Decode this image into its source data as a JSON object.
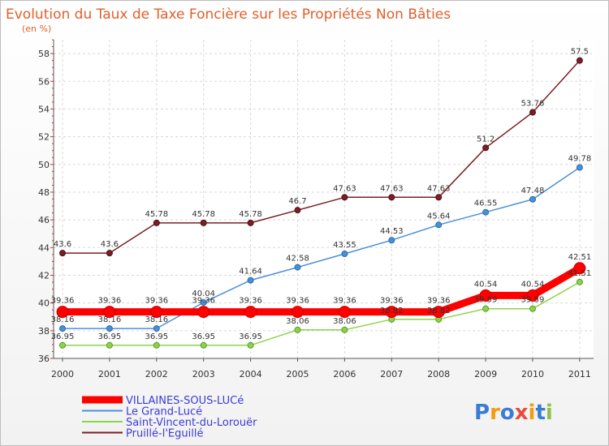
{
  "chart_data": {
    "type": "line",
    "title": "Evolution du Taux de Taxe Foncière sur les Propriétés Non Bâties",
    "subtitle": "(en %)",
    "x": [
      "2000",
      "2001",
      "2002",
      "2003",
      "2004",
      "2005",
      "2006",
      "2007",
      "2008",
      "2009",
      "2010",
      "2011"
    ],
    "ylim": [
      36,
      59
    ],
    "yticks": [
      36,
      38,
      40,
      42,
      44,
      46,
      48,
      50,
      52,
      54,
      56,
      58
    ],
    "grid": true,
    "legend_position": "bottom-left",
    "series": [
      {
        "name": "VILLAINES-SOUS-LUCé",
        "color": "#ff0000",
        "values": [
          39.36,
          39.36,
          39.36,
          39.36,
          39.36,
          39.36,
          39.36,
          39.36,
          39.36,
          40.54,
          40.54,
          42.51
        ],
        "labels": [
          "39.36",
          "39.36",
          "39.36",
          "39.36",
          "39.36",
          "39.36",
          "39.36",
          "39.36",
          "39.36",
          "40.54",
          "40.54",
          "42.51"
        ]
      },
      {
        "name": "Le Grand-Lucé",
        "color": "#4a90d9",
        "values": [
          38.16,
          38.16,
          38.16,
          40.04,
          41.64,
          42.58,
          43.55,
          44.53,
          45.64,
          46.55,
          47.48,
          49.78
        ],
        "labels": [
          "38.16",
          "38.16",
          "38.16",
          "40.04",
          "41.64",
          "42.58",
          "43.55",
          "44.53",
          "45.64",
          "46.55",
          "47.48",
          "49.78"
        ]
      },
      {
        "name": "Saint-Vincent-du-Lorouër",
        "color": "#8bd44a",
        "values": [
          36.95,
          36.95,
          36.95,
          36.95,
          36.95,
          38.06,
          38.06,
          38.82,
          38.82,
          39.59,
          39.59,
          41.51
        ],
        "labels": [
          "36.95",
          "36.95",
          "36.95",
          "36.95",
          "36.95",
          "38.06",
          "38.06",
          "38.82",
          "38.82",
          "39.59",
          "39.59",
          "41.51"
        ]
      },
      {
        "name": "Pruillé-l'Eguillé",
        "color": "#7b1f25",
        "values": [
          43.6,
          43.6,
          45.78,
          45.78,
          45.78,
          46.7,
          47.63,
          47.63,
          47.63,
          51.2,
          53.76,
          57.5
        ],
        "labels": [
          "43.6",
          "43.6",
          "45.78",
          "45.78",
          "45.78",
          "46.7",
          "47.63",
          "47.63",
          "47.63",
          "51.2",
          "53.76",
          "57.5"
        ]
      }
    ]
  },
  "logo": {
    "text": "Proxiti"
  }
}
